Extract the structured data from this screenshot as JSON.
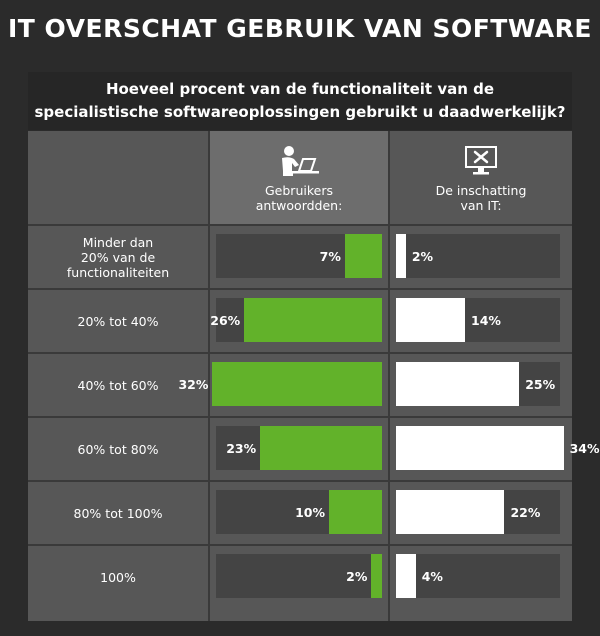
{
  "title": "IT OVERSCHAT GEBRUIK VAN SOFTWARE",
  "question_line1": "Hoeveel procent van de functionaliteit van de",
  "question_line2": "specialistische softwareoplossingen gebruikt u daadwerkelijk?",
  "header_users_line1": "Gebruikers",
  "header_users_line2": "antwoordden:",
  "header_it_line1": "De inschatting",
  "header_it_line2": "van IT:",
  "icons": {
    "users": "person-at-laptop-icon",
    "it": "monitor-with-tools-icon"
  },
  "colors": {
    "users_bar": "#62b22a",
    "it_bar": "#ffffff",
    "track": "#444444"
  },
  "chart_data": {
    "type": "bar",
    "title": "",
    "categories": [
      [
        "Minder dan",
        "20% van de",
        "functionaliteiten"
      ],
      [
        "20% tot 40%"
      ],
      [
        "40% tot 60%"
      ],
      [
        "60% tot 80%"
      ],
      [
        "80% tot 100%"
      ],
      [
        "100%"
      ]
    ],
    "series": [
      {
        "name": "Gebruikers antwoordden:",
        "values": [
          7,
          26,
          32,
          23,
          10,
          2
        ],
        "labels": [
          "7%",
          "26%",
          "32%",
          "23%",
          "10%",
          "2%"
        ]
      },
      {
        "name": "De inschatting van IT:",
        "values": [
          2,
          14,
          25,
          34,
          22,
          4
        ],
        "labels": [
          "2%",
          "14%",
          "25%",
          "34%",
          "22%",
          "4%"
        ]
      }
    ],
    "xlim": [
      0,
      100
    ]
  }
}
